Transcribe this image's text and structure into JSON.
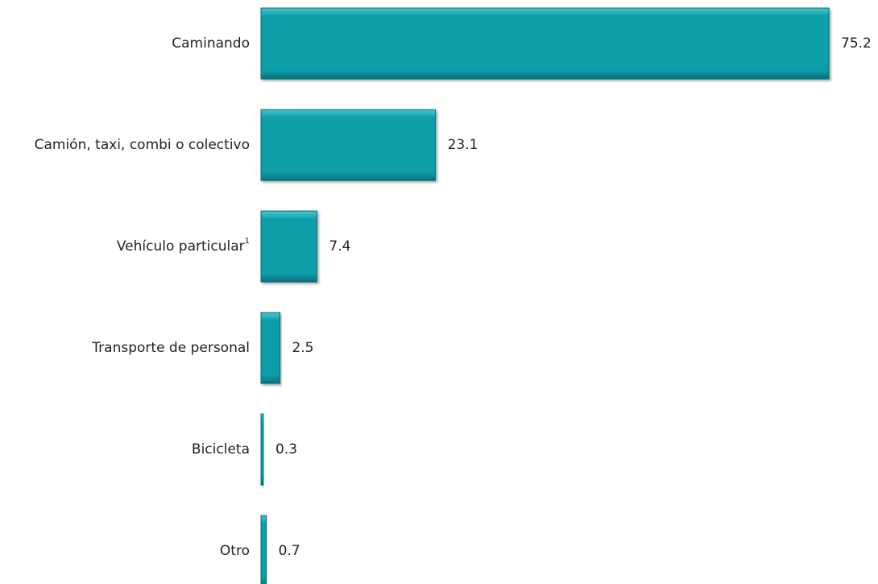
{
  "chart_data": {
    "type": "bar",
    "orientation": "horizontal",
    "title": "",
    "xlabel": "",
    "ylabel": "",
    "categories": [
      "Caminando",
      "Camión, taxi, combi o colectivo",
      "Vehículo particular",
      "Transporte de personal",
      "Bicicleta",
      "Otro"
    ],
    "category_superscripts": [
      "",
      "",
      "1",
      "",
      "",
      ""
    ],
    "values": [
      75.2,
      23.1,
      7.4,
      2.5,
      0.3,
      0.7
    ],
    "value_labels": [
      "75.2",
      "23.1",
      "7.4",
      "2.5",
      "0.3",
      "0.7"
    ],
    "xlim": [
      0,
      75.2
    ],
    "grid": false,
    "legend": "none",
    "colors": {
      "bar": "#0a9eaa",
      "bar_light": "#4fc3cc",
      "bar_dark": "#06707a",
      "axis": "#3d7f87"
    }
  }
}
